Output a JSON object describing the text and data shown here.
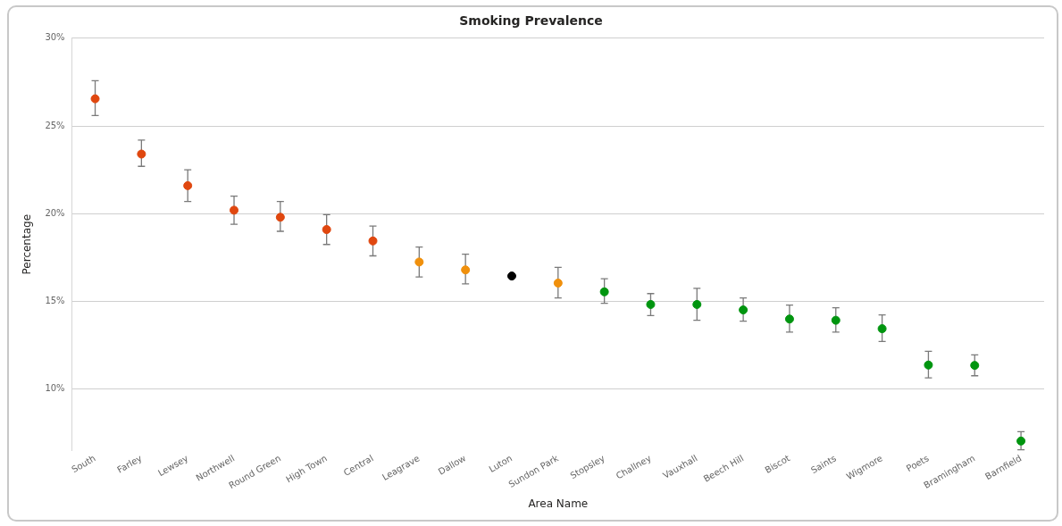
{
  "chart_data": {
    "type": "scatter",
    "title": "Smoking Prevalence",
    "xlabel": "Area Name",
    "ylabel": "Percentage",
    "categories": [
      "South",
      "Farley",
      "Lewsey",
      "Northwell",
      "Round Green",
      "High Town",
      "Central",
      "Leagrave",
      "Dallow",
      "Luton",
      "Sundon Park",
      "Stopsley",
      "Challney",
      "Vauxhall",
      "Beech Hill",
      "Biscot",
      "Saints",
      "Wigmore",
      "Poets",
      "Bramingham",
      "Barnfield"
    ],
    "values": [
      26.55,
      23.4,
      21.6,
      20.2,
      19.8,
      19.1,
      18.45,
      17.25,
      16.8,
      16.45,
      16.05,
      15.55,
      14.83,
      14.83,
      14.52,
      14.0,
      13.93,
      13.45,
      11.38,
      11.36,
      7.05
    ],
    "errors": [
      [
        25.6,
        27.58
      ],
      [
        22.7,
        24.2
      ],
      [
        20.7,
        22.5
      ],
      [
        19.4,
        21.0
      ],
      [
        19.0,
        20.7
      ],
      [
        18.25,
        19.95
      ],
      [
        17.6,
        19.3
      ],
      [
        16.4,
        18.1
      ],
      [
        16.0,
        17.7
      ],
      null,
      [
        15.2,
        16.95
      ],
      [
        14.9,
        16.3
      ],
      [
        14.2,
        15.45
      ],
      [
        13.93,
        15.75
      ],
      [
        13.88,
        15.2
      ],
      [
        13.26,
        14.8
      ],
      [
        13.26,
        14.64
      ],
      [
        12.72,
        14.24
      ],
      [
        10.65,
        12.16
      ],
      [
        10.77,
        11.96
      ],
      [
        6.55,
        7.58
      ]
    ],
    "colors": [
      "#e0470f",
      "#e0470f",
      "#e0470f",
      "#e0470f",
      "#e0470f",
      "#e0470f",
      "#e0470f",
      "#f0900c",
      "#f0900c",
      "#000000",
      "#f0900c",
      "#00950f",
      "#00950f",
      "#00950f",
      "#00950f",
      "#00950f",
      "#00950f",
      "#00950f",
      "#00950f",
      "#00950f",
      "#00950f"
    ],
    "ylim": [
      6.5,
      30
    ],
    "yticks": [
      {
        "value": 10,
        "label": "10%"
      },
      {
        "value": 15,
        "label": "15%"
      },
      {
        "value": 20,
        "label": "20%"
      },
      {
        "value": 25,
        "label": "25%"
      },
      {
        "value": 30,
        "label": "30%"
      }
    ],
    "grid": "y",
    "legend": false,
    "marker": "circle"
  }
}
